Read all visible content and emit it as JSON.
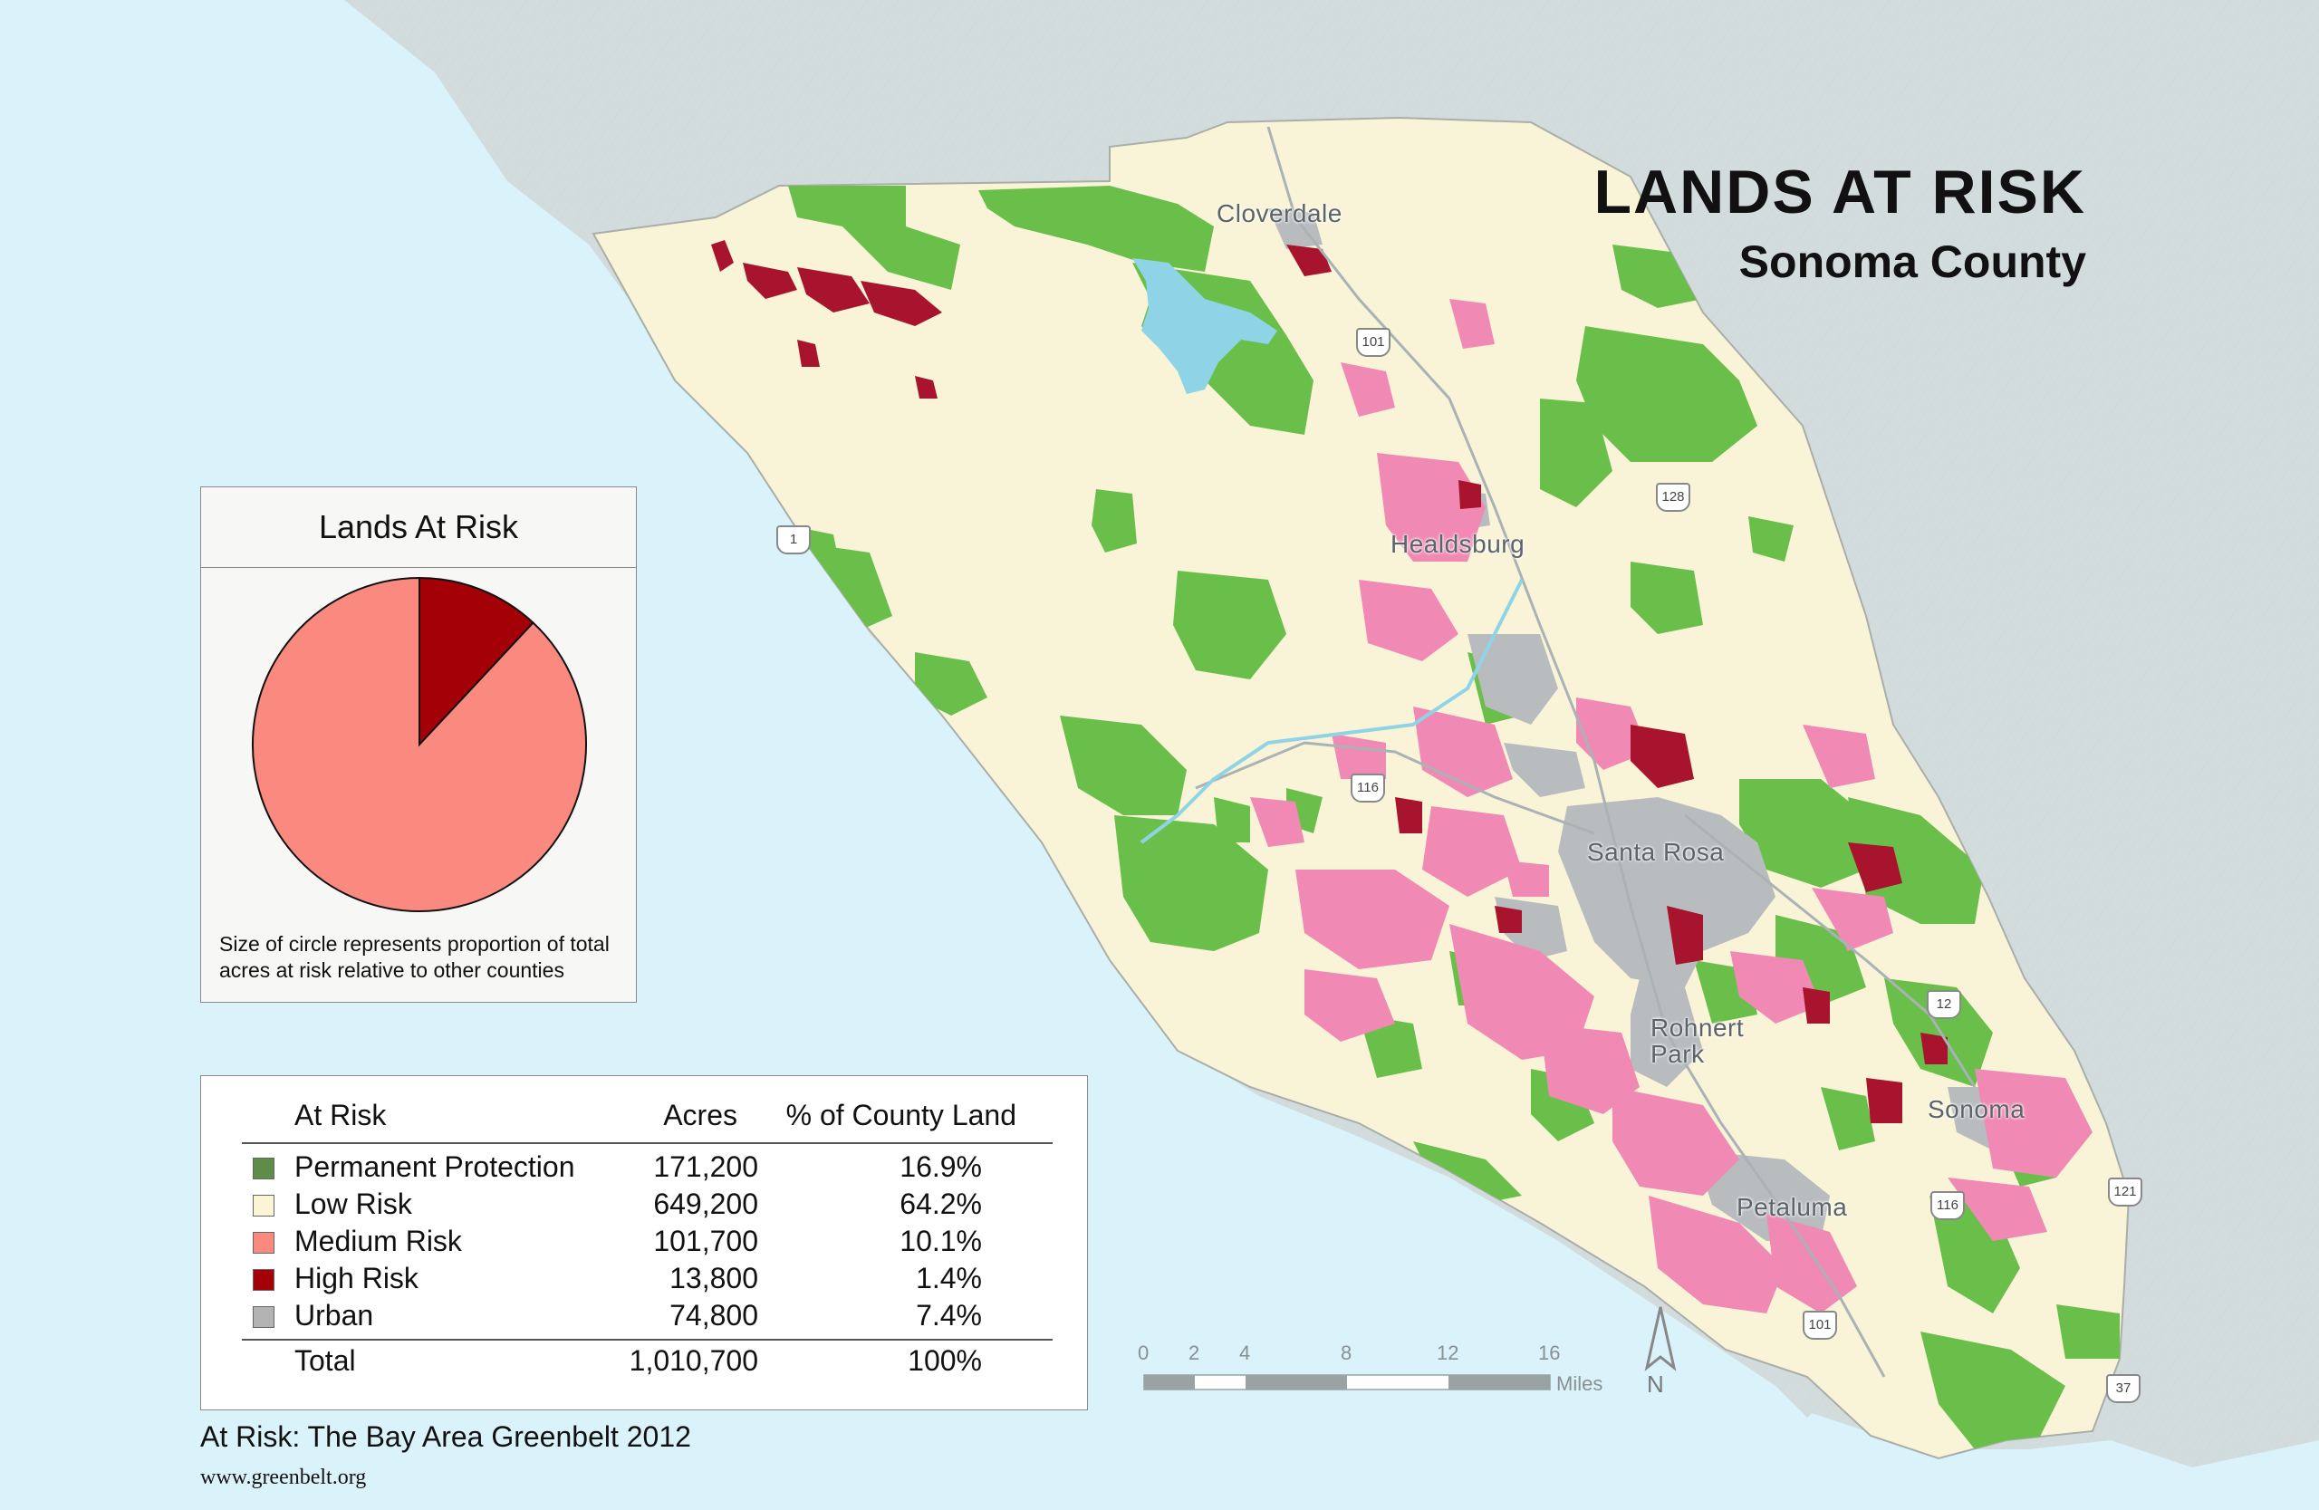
{
  "title": {
    "main": "LANDS AT RISK",
    "sub": "Sonoma County"
  },
  "cities": [
    {
      "name": "Cloverdale"
    },
    {
      "name": "Healdsburg"
    },
    {
      "name": "Santa Rosa"
    },
    {
      "name": "Rohnert\nPark"
    },
    {
      "name": "Sonoma"
    },
    {
      "name": "Petaluma"
    }
  ],
  "highways": [
    "101",
    "128",
    "1",
    "116",
    "12",
    "121",
    "116",
    "101",
    "37"
  ],
  "pie": {
    "heading": "Lands At Risk",
    "caption": "Size of circle represents proportion of total acres at risk relative to other counties",
    "slices": [
      {
        "label": "Medium Risk",
        "acres": 101700,
        "color": "#fa8a80"
      },
      {
        "label": "High Risk",
        "acres": 13800,
        "color": "#a30008"
      }
    ]
  },
  "legend": {
    "col_label": "At Risk",
    "col_acres": "Acres",
    "col_pct": "% of County Land",
    "rows": [
      {
        "name": "Permanent Protection",
        "acres": "171,200",
        "pct": "16.9%",
        "color": "#5e8d49"
      },
      {
        "name": "Low Risk",
        "acres": "649,200",
        "pct": "64.2%",
        "color": "#fbf4d5"
      },
      {
        "name": "Medium Risk",
        "acres": "101,700",
        "pct": "10.1%",
        "color": "#fa8a80"
      },
      {
        "name": "High Risk",
        "acres": "13,800",
        "pct": "1.4%",
        "color": "#a30008"
      },
      {
        "name": "Urban",
        "acres": "74,800",
        "pct": "7.4%",
        "color": "#b3b3b3"
      }
    ],
    "total": {
      "name": "Total",
      "acres": "1,010,700",
      "pct": "100%"
    }
  },
  "credit": "At Risk: The Bay Area Greenbelt 2012",
  "url": "www.greenbelt.org",
  "scale": {
    "ticks": [
      "0",
      "2",
      "4",
      "8",
      "12",
      "16"
    ],
    "unit": "Miles"
  },
  "north_label": "N",
  "colors": {
    "ocean": "#daf3fb",
    "land_outside": "#d3dcdd",
    "low_risk": "#f9f4d7",
    "protected": "#6abf4b",
    "medium_risk": "#f08ab5",
    "high_risk": "#a8132d",
    "urban": "#b8bcbf",
    "water": "#8fd4e6"
  }
}
